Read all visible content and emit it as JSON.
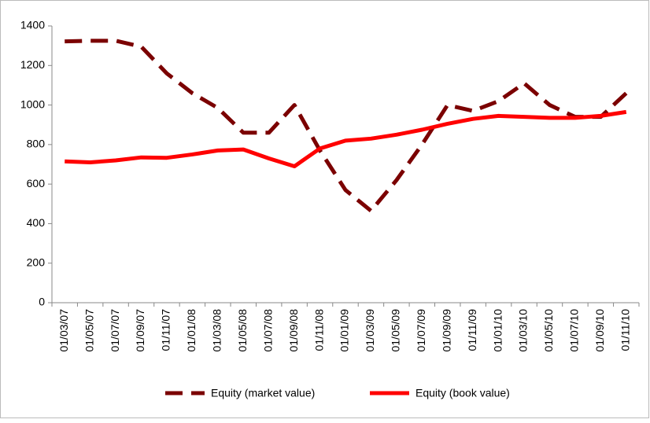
{
  "chart_data": {
    "type": "line",
    "categories": [
      "01/03/07",
      "01/05/07",
      "01/07/07",
      "01/09/07",
      "01/11/07",
      "01/01/08",
      "01/03/08",
      "01/05/08",
      "01/07/08",
      "01/09/08",
      "01/11/08",
      "01/01/09",
      "01/03/09",
      "01/05/09",
      "01/07/09",
      "01/09/09",
      "01/11/09",
      "01/01/10",
      "01/03/10",
      "01/05/10",
      "01/07/10",
      "01/09/10",
      "01/11/10"
    ],
    "series": [
      {
        "name": "Equity (market value)",
        "color": "#7b0000",
        "dashed": true,
        "values": [
          1322,
          1325,
          1325,
          1295,
          1160,
          1060,
          985,
          860,
          860,
          1000,
          770,
          570,
          465,
          620,
          800,
          1000,
          970,
          1020,
          1110,
          1000,
          940,
          940,
          1060
        ]
      },
      {
        "name": "Equity (book value)",
        "color": "#ff0000",
        "dashed": false,
        "values": [
          715,
          710,
          720,
          735,
          733,
          750,
          770,
          775,
          730,
          690,
          780,
          820,
          830,
          850,
          875,
          905,
          930,
          945,
          940,
          935,
          935,
          945,
          965
        ]
      }
    ],
    "ylim": [
      0,
      1400
    ],
    "yticks": [
      0,
      200,
      400,
      600,
      800,
      1000,
      1200,
      1400
    ],
    "grid": false,
    "legend": "bottom"
  }
}
